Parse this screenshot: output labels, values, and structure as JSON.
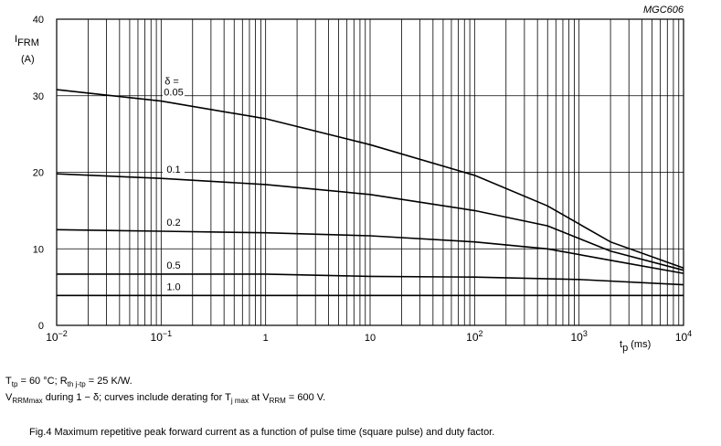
{
  "chart_data": {
    "type": "line",
    "code": "MGC606",
    "y_label": {
      "main": "I",
      "sub": "FRM",
      "unit": "(A)"
    },
    "x_label": {
      "main": "t",
      "sub": "p",
      "unit": " (ms)"
    },
    "delta_label": "δ =",
    "x_log": true,
    "xlim": [
      0.01,
      10000
    ],
    "xticks": [
      {
        "value": 0.01,
        "label": "10",
        "exponent": "−2"
      },
      {
        "value": 0.1,
        "label": "10",
        "exponent": "−1"
      },
      1,
      10,
      {
        "value": 100,
        "label": "10",
        "exponent": "2"
      },
      {
        "value": 1000,
        "label": "10",
        "exponent": "3"
      },
      {
        "value": 10000,
        "label": "10",
        "exponent": "4"
      }
    ],
    "xminor": [
      0.02,
      0.03,
      0.04,
      0.05,
      0.06,
      0.07,
      0.08,
      0.09,
      0.2,
      0.3,
      0.4,
      0.5,
      0.6,
      0.7,
      0.8,
      0.9,
      2,
      3,
      4,
      5,
      6,
      7,
      8,
      9,
      20,
      30,
      40,
      50,
      60,
      70,
      80,
      90,
      200,
      300,
      400,
      500,
      600,
      700,
      800,
      900,
      2000,
      3000,
      4000,
      5000,
      6000,
      7000,
      8000,
      9000
    ],
    "ylim": [
      0,
      40
    ],
    "yticks": [
      0,
      10,
      20,
      30,
      40
    ],
    "grid": true,
    "series": [
      {
        "name": "0.05",
        "color": "#000000",
        "x": [
          0.01,
          0.1,
          1,
          10,
          100,
          500,
          2000,
          10000
        ],
        "values": [
          30.8,
          29.3,
          27,
          23.6,
          19.6,
          15.6,
          10.9,
          7.5
        ]
      },
      {
        "name": "0.1",
        "color": "#000000",
        "x": [
          0.01,
          0.1,
          1,
          10,
          100,
          500,
          2000,
          10000
        ],
        "values": [
          19.8,
          19.2,
          18.4,
          17.1,
          15.0,
          13.0,
          9.7,
          7.2
        ]
      },
      {
        "name": "0.2",
        "color": "#000000",
        "x": [
          0.01,
          0.1,
          1,
          10,
          100,
          500,
          2000,
          10000
        ],
        "values": [
          12.5,
          12.3,
          12.1,
          11.7,
          10.9,
          10.0,
          8.5,
          6.8
        ]
      },
      {
        "name": "0.5",
        "color": "#000000",
        "x": [
          0.01,
          0.1,
          1,
          10,
          100,
          1000,
          10000
        ],
        "values": [
          6.7,
          6.7,
          6.7,
          6.4,
          6.3,
          6.0,
          5.3
        ]
      },
      {
        "name": "1.0",
        "color": "#000000",
        "x": [
          0.01,
          0.1,
          1,
          10,
          100,
          1000,
          10000
        ],
        "values": [
          3.9,
          3.9,
          3.9,
          3.9,
          3.9,
          3.9,
          3.9
        ]
      }
    ],
    "notes": [
      [
        {
          "t": "T"
        },
        {
          "sub": "tp"
        },
        {
          "t": " = 60 °C; R"
        },
        {
          "sub": "th j-tp"
        },
        {
          "t": " = 25 K/W."
        }
      ],
      [
        {
          "t": "V"
        },
        {
          "sub": "RRMmax"
        },
        {
          "t": " during 1 − δ; curves include derating for T"
        },
        {
          "sub": "j max"
        },
        {
          "t": " at V"
        },
        {
          "sub": "RRM"
        },
        {
          "t": " = 600 V."
        }
      ]
    ],
    "caption": "Fig.4  Maximum repetitive peak forward current as a function of pulse time (square pulse) and duty factor."
  }
}
